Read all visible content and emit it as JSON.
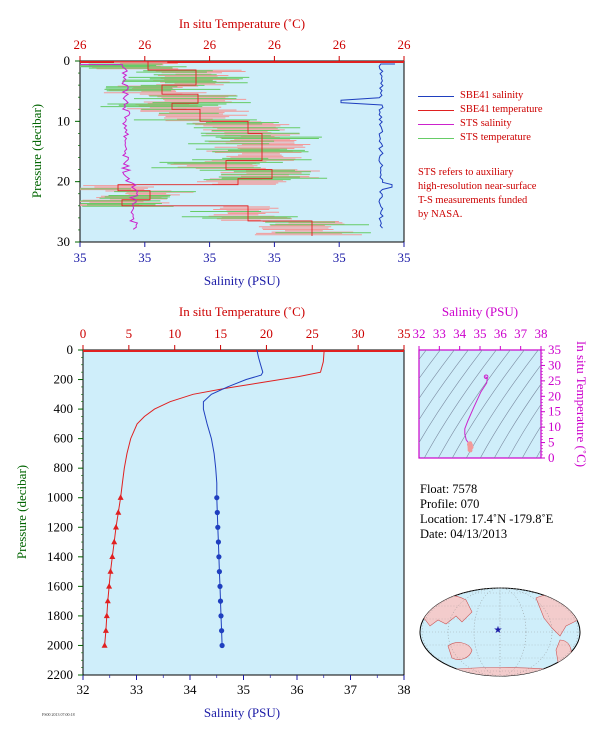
{
  "colors": {
    "salinity_axis": "#1a1aa6",
    "temperature_axis": "#cc0000",
    "pressure_axis": "#006400",
    "inset_axis": "#cc00cc",
    "plot_bg": "#cfeefa",
    "sbe_salinity": "#1f3fbf",
    "sbe_temperature": "#e02020",
    "sts_salinity": "#cc22cc",
    "sts_temperature": "#66cc66",
    "sts_temperature_fill": "#f29a9a"
  },
  "top_panel": {
    "top_axis_title": "In situ Temperature (˚C)",
    "top_ticks": [
      "26",
      "26",
      "26",
      "26",
      "26",
      "26"
    ],
    "bottom_axis_title": "Salinity (PSU)",
    "bottom_ticks": [
      "35",
      "35",
      "35",
      "35",
      "35",
      "35"
    ],
    "left_axis_title": "Pressure (decibar)",
    "left_ticks": [
      "0",
      "10",
      "20",
      "30"
    ]
  },
  "legend": [
    {
      "label": "SBE41 salinity",
      "color": "#1f3fbf"
    },
    {
      "label": "SBE41 temperature",
      "color": "#e02020"
    },
    {
      "label": "STS salinity",
      "color": "#cc22cc"
    },
    {
      "label": "STS temperature",
      "color": "#66cc66"
    }
  ],
  "note": [
    "STS refers to auxiliary",
    "high-resolution near-surface",
    "T-S measurements funded",
    "by NASA."
  ],
  "bottom_panel": {
    "top_axis_title": "In situ Temperature (˚C)",
    "top_ticks": [
      "0",
      "5",
      "10",
      "15",
      "20",
      "25",
      "30",
      "35"
    ],
    "bottom_axis_title": "Salinity (PSU)",
    "bottom_ticks": [
      "32",
      "33",
      "34",
      "35",
      "36",
      "37",
      "38"
    ],
    "left_axis_title": "Pressure (decibar)",
    "left_ticks": [
      "0",
      "200",
      "400",
      "600",
      "800",
      "1000",
      "1200",
      "1400",
      "1600",
      "1800",
      "2000",
      "2200"
    ]
  },
  "inset": {
    "top_axis_title": "Salinity (PSU)",
    "top_ticks": [
      "32",
      "33",
      "34",
      "35",
      "36",
      "37",
      "38"
    ],
    "right_axis_title": "In situ Temperature (˚C)",
    "right_ticks": [
      "0",
      "5",
      "10",
      "15",
      "20",
      "25",
      "30",
      "35"
    ]
  },
  "float_info": {
    "float": "Float:  7578",
    "profile": "Profile:  070",
    "location": "Location:  17.4˚N  -179.8˚E",
    "date": "Date:  04/13/2013"
  },
  "map": {
    "marker_lat": 17.4,
    "marker_lon": -179.8
  },
  "chart_data": [
    {
      "type": "line",
      "panel": "near-surface detail (0–30 dbar)",
      "ylim": [
        30,
        0
      ],
      "series": [
        {
          "name": "SBE41 salinity",
          "x": [
            35.1,
            35.1,
            35.1,
            35.1
          ],
          "y": [
            0,
            7,
            20,
            28
          ]
        },
        {
          "name": "STS salinity",
          "x": [
            34.7,
            34.7,
            34.7,
            34.7
          ],
          "y": [
            0.5,
            10,
            20,
            28
          ]
        },
        {
          "name": "SBE41 temperature",
          "x": [
            26.3,
            26.4,
            26.5,
            26.4
          ],
          "y": [
            0,
            8,
            20,
            28
          ]
        },
        {
          "name": "STS temperature",
          "x": [
            26.3,
            26.4,
            26.5,
            26.4
          ],
          "y": [
            0,
            8,
            20,
            28
          ]
        }
      ]
    },
    {
      "type": "line",
      "panel": "full profile (0–2000 dbar)",
      "xlim_salinity": [
        32,
        38
      ],
      "xlim_temperature": [
        0,
        35
      ],
      "ylim": [
        2200,
        0
      ],
      "series": [
        {
          "name": "Salinity",
          "pressure": [
            0,
            50,
            100,
            150,
            170,
            200,
            250,
            300,
            350,
            400,
            500,
            600,
            700,
            800,
            900,
            1000,
            1100,
            1200,
            1300,
            1400,
            1500,
            1600,
            1700,
            1800,
            1900,
            2000
          ],
          "values": [
            35.25,
            35.28,
            35.32,
            35.36,
            35.33,
            35.05,
            34.7,
            34.4,
            34.25,
            34.25,
            34.32,
            34.4,
            34.45,
            34.48,
            34.5,
            34.5,
            34.51,
            34.52,
            34.53,
            34.54,
            34.55,
            34.56,
            34.57,
            34.58,
            34.59,
            34.6
          ]
        },
        {
          "name": "Temperature",
          "pressure": [
            0,
            80,
            150,
            180,
            220,
            260,
            300,
            350,
            400,
            450,
            500,
            600,
            700,
            800,
            900,
            1000,
            1100,
            1200,
            1300,
            1400,
            1500,
            1600,
            1700,
            1800,
            1900,
            2000
          ],
          "values": [
            26.3,
            26.2,
            25.9,
            23.5,
            19.5,
            15.5,
            12.0,
            9.5,
            7.8,
            6.7,
            5.9,
            5.2,
            4.8,
            4.5,
            4.3,
            4.1,
            3.85,
            3.6,
            3.4,
            3.2,
            3.0,
            2.85,
            2.7,
            2.6,
            2.5,
            2.35
          ]
        }
      ]
    }
  ]
}
